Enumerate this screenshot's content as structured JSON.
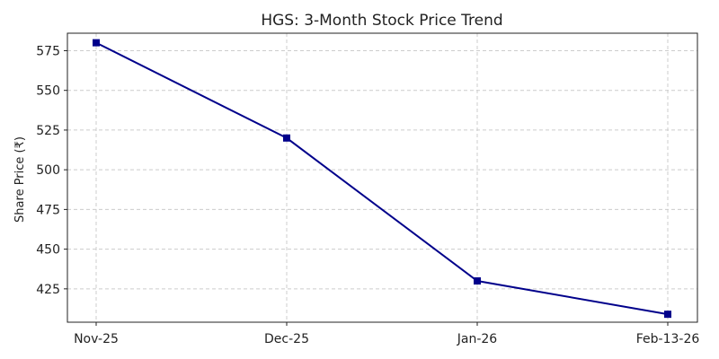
{
  "chart_data": {
    "type": "line",
    "title": "HGS: 3-Month Stock Price Trend",
    "xlabel": "",
    "ylabel": "Share Price (₹)",
    "categories": [
      "Nov-25",
      "Dec-25",
      "Jan-26",
      "Feb-13-26"
    ],
    "series": [
      {
        "values": [
          580,
          520,
          430,
          409
        ],
        "color": "#00008b",
        "marker": "square"
      }
    ],
    "ylim": [
      404,
      586
    ],
    "yticks": [
      425,
      450,
      475,
      500,
      525,
      550,
      575
    ],
    "grid": true
  }
}
